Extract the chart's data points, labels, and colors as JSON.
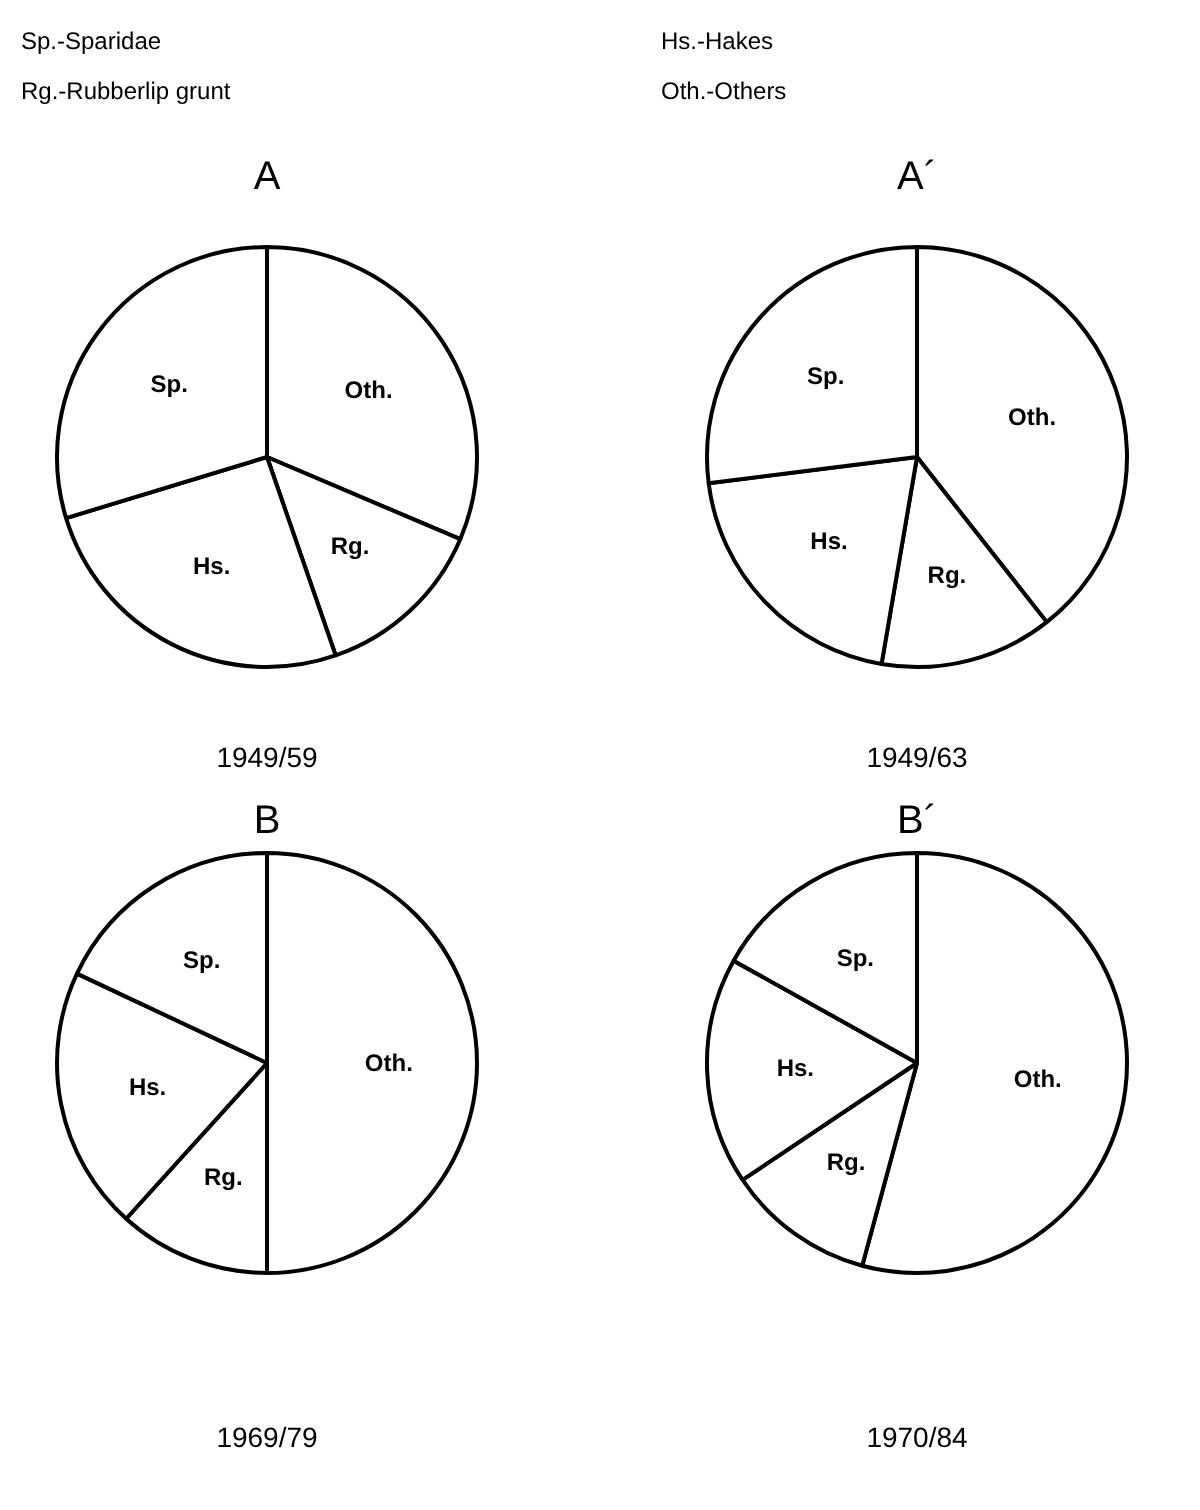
{
  "chart_data": [
    {
      "type": "pie",
      "title": "A",
      "subtitle": "1949/59",
      "categories": [
        "Oth.",
        "Rg.",
        "Hs.",
        "Sp."
      ],
      "values": [
        31.4,
        13.3,
        25.6,
        29.7
      ],
      "colors": [
        "#ffffff",
        "#ffffff",
        "#ffffff",
        "#ffffff"
      ],
      "annotations": [
        "Sp.-Sparidae",
        "Rg.-Rubberlip grunt"
      ]
    },
    {
      "type": "pie",
      "title": "A´",
      "subtitle": "1949/63",
      "categories": [
        "Oth.",
        "Rg.",
        "Hs.",
        "Sp."
      ],
      "values": [
        39.4,
        13.3,
        20.3,
        27.0
      ],
      "colors": [
        "#ffffff",
        "#ffffff",
        "#ffffff",
        "#ffffff"
      ],
      "annotations": [
        "Hs.-Hakes",
        "Oth.-Others"
      ]
    },
    {
      "type": "pie",
      "title": "B",
      "subtitle": "1969/79",
      "categories": [
        "Oth.",
        "Rg.",
        "Hs.",
        "Sp."
      ],
      "values": [
        50.0,
        11.7,
        20.3,
        18.0
      ],
      "colors": [
        "#ffffff",
        "#ffffff",
        "#ffffff",
        "#ffffff"
      ]
    },
    {
      "type": "pie",
      "title": "B´",
      "subtitle": "1970/84",
      "categories": [
        "Oth.",
        "Rg.",
        "Hs.",
        "Sp."
      ],
      "values": [
        54.2,
        11.4,
        17.5,
        16.9
      ],
      "colors": [
        "#ffffff",
        "#ffffff",
        "#ffffff",
        "#ffffff"
      ]
    }
  ]
}
